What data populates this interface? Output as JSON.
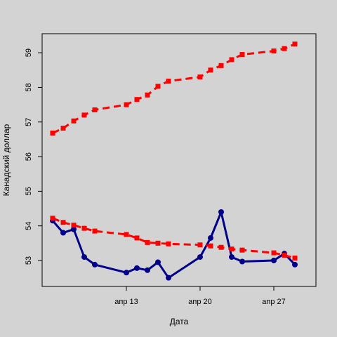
{
  "chart_data": {
    "type": "line",
    "title": "",
    "xlabel": "Дата",
    "ylabel": "Канадский доллар",
    "x_ticks": [
      {
        "date": "2020-04-13",
        "label": "апр 13"
      },
      {
        "date": "2020-04-20",
        "label": "апр 20"
      },
      {
        "date": "2020-04-27",
        "label": "апр 27"
      }
    ],
    "y_ticks": [
      53,
      54,
      55,
      56,
      57,
      58,
      59
    ],
    "xlim": [
      "2020-04-05",
      "2020-05-01"
    ],
    "ylim": [
      52.25,
      59.55
    ],
    "dates": [
      "2020-04-06",
      "2020-04-07",
      "2020-04-08",
      "2020-04-09",
      "2020-04-10",
      "2020-04-13",
      "2020-04-14",
      "2020-04-15",
      "2020-04-16",
      "2020-04-17",
      "2020-04-20",
      "2020-04-21",
      "2020-04-22",
      "2020-04-23",
      "2020-04-24",
      "2020-04-27",
      "2020-04-28",
      "2020-04-29"
    ],
    "series": [
      {
        "color": "#00008b",
        "line": "solid",
        "marker": "circle",
        "values": [
          54.15,
          53.8,
          53.9,
          53.1,
          52.88,
          52.65,
          52.78,
          52.72,
          52.95,
          52.5,
          53.1,
          53.65,
          54.4,
          53.1,
          52.97,
          53.0,
          53.2,
          52.88
        ]
      },
      {
        "color": "#ff0000",
        "line": "dashed",
        "marker": "square",
        "values": [
          56.68,
          56.82,
          57.03,
          57.2,
          57.35,
          57.5,
          57.65,
          57.78,
          58.03,
          58.18,
          58.3,
          58.5,
          58.63,
          58.8,
          58.95,
          59.05,
          59.12,
          59.25
        ]
      },
      {
        "color": "#ff0000",
        "line": "dashed",
        "marker": "square",
        "values": [
          54.22,
          54.1,
          54.02,
          53.93,
          53.85,
          53.75,
          53.65,
          53.52,
          53.5,
          53.48,
          53.45,
          53.42,
          53.38,
          53.33,
          53.3,
          53.22,
          53.15,
          53.07
        ]
      }
    ]
  }
}
